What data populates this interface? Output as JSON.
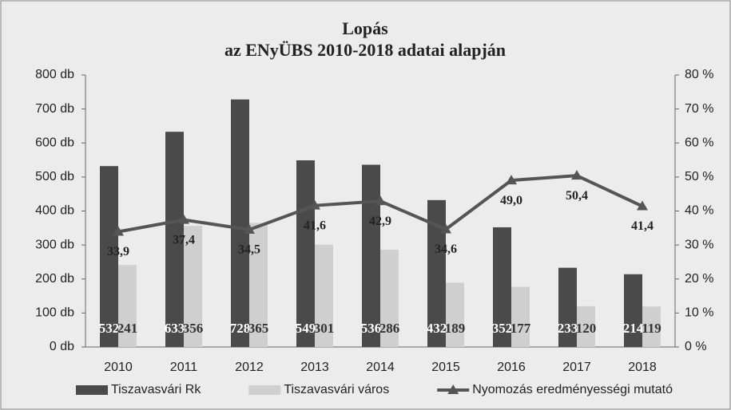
{
  "chart_data": {
    "type": "bar-line",
    "title": "Lopás",
    "subtitle": "az ENyÜBS 2010-2018 adatai alapján",
    "categories": [
      "2010",
      "2011",
      "2012",
      "2013",
      "2014",
      "2015",
      "2016",
      "2017",
      "2018"
    ],
    "series": [
      {
        "name": "Tiszavasvári Rk",
        "type": "bar",
        "color": "#4a4a4a",
        "values": [
          532,
          633,
          728,
          549,
          536,
          432,
          352,
          233,
          214
        ]
      },
      {
        "name": "Tiszavasvári város",
        "type": "bar",
        "color": "#cfcfcf",
        "values": [
          241,
          356,
          365,
          301,
          286,
          189,
          177,
          120,
          119
        ]
      },
      {
        "name": "Nyomozás eredményességi mutató",
        "type": "line",
        "axis": "y2",
        "color": "#555555",
        "values": [
          33.9,
          37.4,
          34.5,
          41.6,
          42.9,
          34.6,
          49.0,
          50.4,
          41.4
        ],
        "value_labels": [
          "33,9",
          "37,4",
          "34,5",
          "41,6",
          "42,9",
          "34,6",
          "49,0",
          "50,4",
          "41,4"
        ]
      }
    ],
    "ylim": [
      0,
      800
    ],
    "yticks": [
      {
        "value": 0,
        "label": "0 db"
      },
      {
        "value": 100,
        "label": "100 db"
      },
      {
        "value": 200,
        "label": "200 db"
      },
      {
        "value": 300,
        "label": "300 db"
      },
      {
        "value": 400,
        "label": "400 db"
      },
      {
        "value": 500,
        "label": "500 db"
      },
      {
        "value": 600,
        "label": "600 db"
      },
      {
        "value": 700,
        "label": "700 db"
      },
      {
        "value": 800,
        "label": "800 db"
      }
    ],
    "y2lim": [
      0,
      80
    ],
    "y2ticks": [
      {
        "value": 0,
        "label": "0 %"
      },
      {
        "value": 10,
        "label": "10 %"
      },
      {
        "value": 20,
        "label": "20 %"
      },
      {
        "value": 30,
        "label": "30 %"
      },
      {
        "value": 40,
        "label": "40 %"
      },
      {
        "value": 50,
        "label": "50 %"
      },
      {
        "value": 60,
        "label": "60 %"
      },
      {
        "value": 70,
        "label": "70 %"
      },
      {
        "value": 80,
        "label": "80 %"
      }
    ],
    "legend": "bottom"
  }
}
